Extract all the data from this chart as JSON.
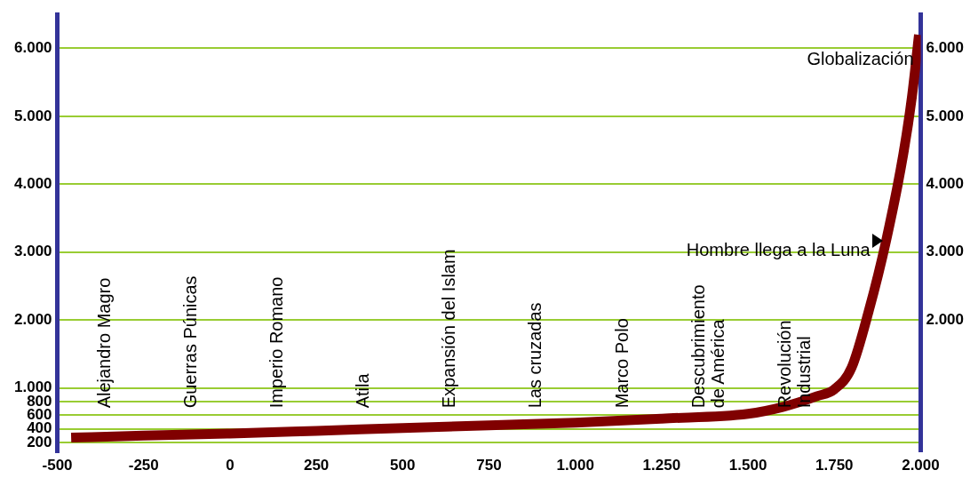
{
  "chart_data": {
    "type": "line",
    "series": [
      {
        "color": "#800000",
        "x": [
          -460,
          -250,
          0,
          250,
          500,
          750,
          1000,
          1250,
          1500,
          1600,
          1700,
          1750,
          1800,
          1850,
          1900,
          1950,
          1975,
          1995
        ],
        "values": [
          270,
          300,
          330,
          370,
          410,
          450,
          490,
          550,
          620,
          720,
          880,
          980,
          1300,
          2140,
          3170,
          4450,
          5300,
          6200
        ]
      }
    ],
    "xlim": [
      -500,
      2000
    ],
    "ylim": [
      60,
      6500
    ],
    "y2lim": [
      60,
      6500
    ],
    "xticks": [
      -500,
      -250,
      0,
      250,
      500,
      750,
      {
        "value": 1000,
        "label": "1.000"
      },
      {
        "value": 1250,
        "label": "1.250"
      },
      {
        "value": 1500,
        "label": "1.500"
      },
      {
        "value": 1750,
        "label": "1.750"
      },
      {
        "value": 2000,
        "label": "2.000"
      }
    ],
    "yticks": [
      200,
      400,
      600,
      800,
      {
        "value": 1000,
        "label": "1.000"
      },
      {
        "value": 2000,
        "label": "2.000"
      },
      {
        "value": 3000,
        "label": "3.000"
      },
      {
        "value": 4000,
        "label": "4.000"
      },
      {
        "value": 5000,
        "label": "5.000"
      },
      {
        "value": 6000,
        "label": "6.000"
      }
    ],
    "y2ticks": [
      {
        "value": 2000,
        "label": "2.000"
      },
      {
        "value": 3000,
        "label": "3.000"
      },
      {
        "value": 4000,
        "label": "4.000"
      },
      {
        "value": 5000,
        "label": "5.000"
      },
      {
        "value": 6000,
        "label": "6.000"
      }
    ],
    "annotations": [
      "Alejandro Magro",
      "Guerras Púnicas",
      "Imperio Romano",
      "Atila",
      "Expansión del Islam",
      "Las cruzadas",
      "Marco Polo",
      "Descubrimiento\nde América",
      "Revolución\nIndustrial",
      {
        "text": "Hombre llega a la Luna",
        "x": 1900,
        "y": 3170
      },
      {
        "text": "Globalización",
        "x": 1995,
        "y": 6200
      }
    ],
    "grid": "y",
    "legend": false,
    "marker": "none",
    "line_style": "solid"
  }
}
